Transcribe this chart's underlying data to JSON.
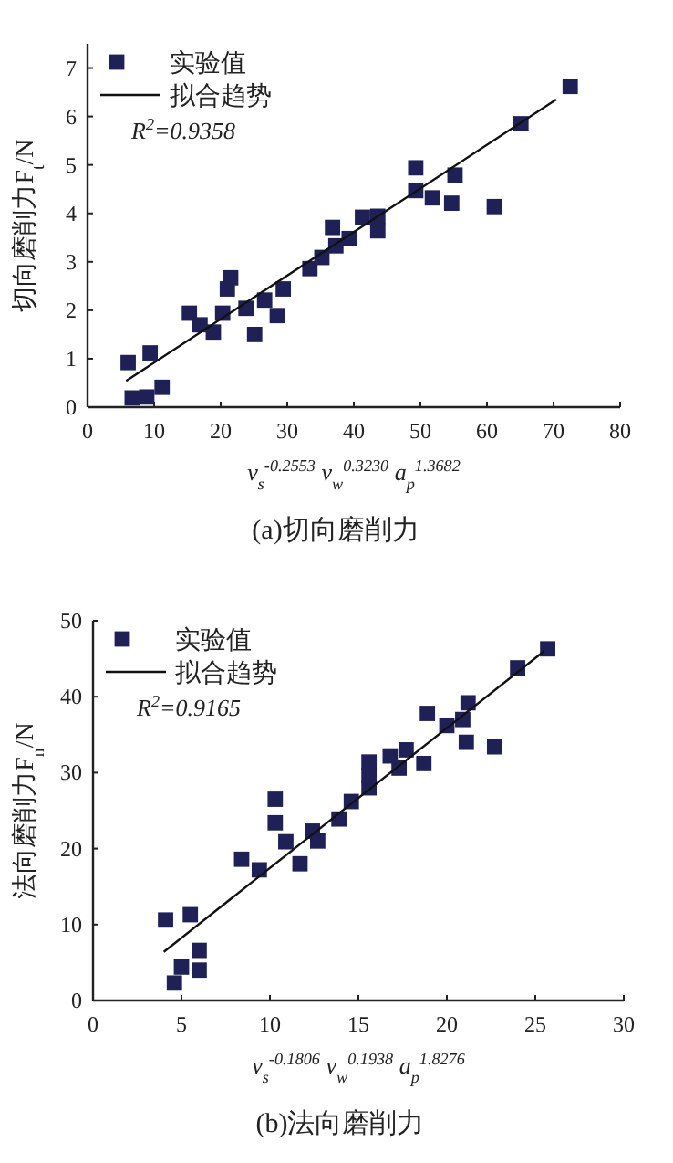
{
  "chart_data": [
    {
      "type": "scatter",
      "title": "(a)切向磨削力",
      "xlabel": "v$_{s}$$^{-0.2553}$ v$_{w}$$^{0.3230}$ a$_{p}$$^{1.3682}$",
      "ylabel": "切向磨削力F$_{t}$/N",
      "annotations": [
        "R$^{2}$=0.9358"
      ],
      "xlim": [
        0,
        80
      ],
      "ylim": [
        0,
        7.5
      ],
      "xticks": [
        0,
        10,
        20,
        30,
        40,
        50,
        60,
        70,
        80
      ],
      "yticks": [
        0,
        1,
        2,
        3,
        4,
        5,
        6,
        7
      ],
      "legend": "top left",
      "series": [
        {
          "name": "实验值",
          "marker": "square",
          "color": "#1f2156",
          "x": [
            6.1,
            6.7,
            8.9,
            9.4,
            11.2,
            15.3,
            16.9,
            18.9,
            20.3,
            21.0,
            21.5,
            23.8,
            25.1,
            26.6,
            28.5,
            29.4,
            33.4,
            35.2,
            36.8,
            37.3,
            39.3,
            41.3,
            43.6,
            43.6,
            49.3,
            49.3,
            51.8,
            54.7,
            55.2,
            61.1,
            65.1,
            72.5
          ],
          "values": [
            0.92,
            0.19,
            0.21,
            1.12,
            0.41,
            1.94,
            1.7,
            1.55,
            1.94,
            2.44,
            2.67,
            2.04,
            1.5,
            2.21,
            1.89,
            2.44,
            2.86,
            3.09,
            3.71,
            3.33,
            3.48,
            3.92,
            3.94,
            3.64,
            4.94,
            4.47,
            4.32,
            4.21,
            4.79,
            4.14,
            5.85,
            6.62
          ]
        },
        {
          "name": "拟合趋势",
          "type": "line",
          "marker": "none",
          "color": "#111111",
          "x": [
            5.8,
            70.4
          ],
          "values": [
            0.54,
            6.35
          ]
        }
      ]
    },
    {
      "type": "scatter",
      "title": "(b)法向磨削力",
      "xlabel": "v$_{s}$$^{-0.1806}$ v$_{w}$$^{0.1938}$ a$_{p}$$^{1.8276}$",
      "ylabel": "法向磨削力F$_{n}$/N",
      "annotations": [
        "R$^{2}$=0.9165"
      ],
      "xlim": [
        0,
        30
      ],
      "ylim": [
        0,
        50
      ],
      "xticks": [
        0,
        5,
        10,
        15,
        20,
        25,
        30
      ],
      "yticks": [
        0,
        10,
        20,
        30,
        40,
        50
      ],
      "legend": "top left",
      "series": [
        {
          "name": "实验值",
          "marker": "square",
          "color": "#1f2156",
          "x": [
            4.1,
            4.6,
            5.5,
            6.0,
            6.0,
            5.0,
            8.4,
            9.4,
            10.3,
            10.3,
            10.9,
            11.7,
            12.4,
            12.7,
            13.9,
            14.6,
            15.6,
            15.6,
            15.6,
            16.8,
            17.3,
            17.7,
            18.7,
            18.9,
            20.0,
            20.9,
            21.1,
            21.2,
            22.7,
            24.0,
            25.7
          ],
          "values": [
            10.6,
            2.3,
            11.3,
            6.6,
            4.0,
            4.4,
            18.6,
            17.2,
            26.5,
            23.4,
            20.9,
            18.0,
            22.3,
            21.0,
            23.9,
            26.2,
            28.0,
            29.6,
            31.4,
            32.2,
            30.6,
            33.0,
            31.2,
            37.8,
            36.2,
            37.0,
            34.0,
            39.2,
            33.4,
            43.8,
            46.3
          ]
        },
        {
          "name": "拟合趋势",
          "type": "line",
          "marker": "none",
          "color": "#111111",
          "x": [
            4.0,
            25.5
          ],
          "values": [
            6.4,
            46.0
          ]
        }
      ]
    }
  ]
}
